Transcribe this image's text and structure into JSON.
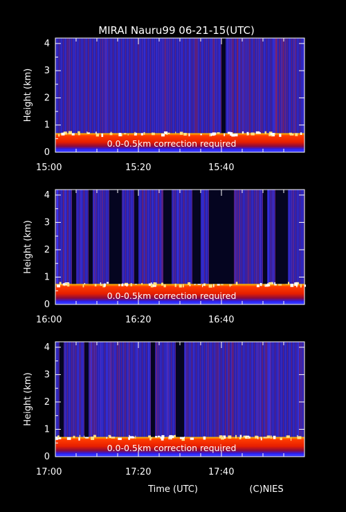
{
  "title": "MIRAI Nauru99 06-21-15(UTC)",
  "xlabel": "Time (UTC)",
  "credit": "(C)NIES",
  "colors": {
    "background": "#000000",
    "low_signal": "#2828c8",
    "mid_signal": "#b42828",
    "strong_signal": "#ff3c00",
    "saturated": "#ffffff",
    "boundary": "#ffc800"
  },
  "chart_data": [
    {
      "type": "heatmap",
      "ylabel": "Height (km)",
      "yticks": [
        "0",
        "1",
        "2",
        "3",
        "4"
      ],
      "ylim": [
        0,
        4.2
      ],
      "xticks": [
        "15:00",
        "15:20",
        "15:40"
      ],
      "xrange": [
        "15:00",
        "16:00"
      ],
      "annotation": "0.0-0.5km correction required",
      "boundary_layer_top_km": 0.7,
      "dark_intervals": [
        [
          "15:40",
          "15:41"
        ]
      ]
    },
    {
      "type": "heatmap",
      "ylabel": "Height (km)",
      "yticks": [
        "0",
        "1",
        "2",
        "3",
        "4"
      ],
      "ylim": [
        0,
        4.2
      ],
      "xticks": [
        "16:00",
        "16:20",
        "16:40"
      ],
      "xrange": [
        "16:00",
        "17:00"
      ],
      "annotation": "0.0-0.5km correction required",
      "boundary_layer_top_km": 0.75,
      "dark_intervals": [
        [
          "16:04",
          "16:05"
        ],
        [
          "16:08",
          "16:09"
        ],
        [
          "16:13",
          "16:16"
        ],
        [
          "16:19",
          "16:20"
        ],
        [
          "16:26",
          "16:28"
        ],
        [
          "16:33",
          "16:35"
        ],
        [
          "16:37",
          "16:43"
        ],
        [
          "16:50",
          "16:51"
        ],
        [
          "16:53",
          "16:56"
        ]
      ]
    },
    {
      "type": "heatmap",
      "ylabel": "Height (km)",
      "yticks": [
        "0",
        "1",
        "2",
        "3",
        "4"
      ],
      "ylim": [
        0,
        4.2
      ],
      "xticks": [
        "17:00",
        "17:20",
        "17:40"
      ],
      "xrange": [
        "17:00",
        "18:00"
      ],
      "annotation": "0.0-0.5km correction required",
      "boundary_layer_top_km": 0.72,
      "dark_intervals": [
        [
          "17:01",
          "17:02"
        ],
        [
          "17:07",
          "17:08"
        ],
        [
          "17:23",
          "17:24"
        ],
        [
          "17:29",
          "17:31"
        ]
      ]
    }
  ]
}
